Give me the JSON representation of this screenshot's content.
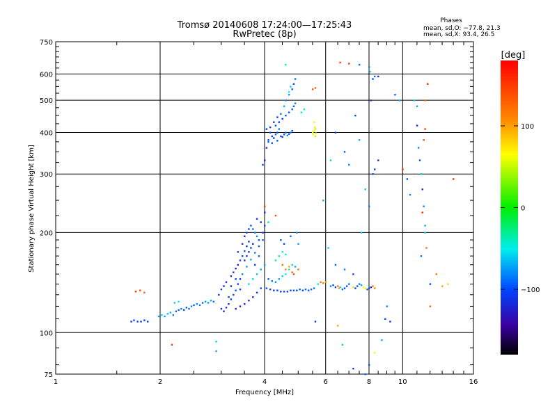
{
  "chart_data": {
    "type": "scatter",
    "title": "Tromsø 20140608 17:24:00—17:25:43",
    "subtitle": "RwPretec (8p)",
    "xlabel": "Frequency [MHz]",
    "ylabel": "Stationary phase Virtual Height [km]",
    "x_scale": "log",
    "y_scale": "log",
    "xlim": [
      1,
      16
    ],
    "ylim": [
      75,
      750
    ],
    "x_ticks": [
      {
        "value": 1,
        "label": "1"
      },
      {
        "value": 2,
        "label": "2"
      },
      {
        "value": 4,
        "label": "4"
      },
      {
        "value": 6,
        "label": "6"
      },
      {
        "value": 8,
        "label": "8"
      },
      {
        "value": 10,
        "label": "10"
      },
      {
        "value": 16,
        "label": "16"
      }
    ],
    "y_ticks": [
      {
        "value": 75,
        "label": "75"
      },
      {
        "value": 100,
        "label": "100"
      },
      {
        "value": 200,
        "label": "200"
      },
      {
        "value": 300,
        "label": "300"
      },
      {
        "value": 400,
        "label": "400"
      },
      {
        "value": 500,
        "label": "500"
      },
      {
        "value": 600,
        "label": "600"
      },
      {
        "value": 750,
        "label": "750"
      }
    ],
    "grid": true,
    "phases_box": {
      "heading": "Phases",
      "line1": "mean, sd,O: −77.8, 21.3",
      "line2": "mean, sd,X:  93.4, 26.5"
    },
    "colorbar": {
      "label": "[deg]",
      "min": -180,
      "max": 180,
      "ticks": [
        {
          "value": 100,
          "label": "100"
        },
        {
          "value": 0,
          "label": "0"
        },
        {
          "value": -100,
          "label": "−100"
        }
      ]
    },
    "points": [
      [
        1.65,
        108,
        -110
      ],
      [
        1.68,
        109,
        -105
      ],
      [
        1.72,
        108,
        -100
      ],
      [
        1.76,
        108,
        -112
      ],
      [
        1.8,
        109,
        -108
      ],
      [
        1.84,
        108,
        -104
      ],
      [
        1.7,
        133,
        150
      ],
      [
        1.75,
        134,
        140
      ],
      [
        1.8,
        132,
        130
      ],
      [
        1.98,
        112,
        -70
      ],
      [
        2.02,
        113,
        -60
      ],
      [
        2.06,
        112,
        -75
      ],
      [
        2.1,
        114,
        -65
      ],
      [
        2.14,
        115,
        -70
      ],
      [
        2.18,
        113,
        -80
      ],
      [
        2.22,
        116,
        -90
      ],
      [
        2.26,
        117,
        -95
      ],
      [
        2.3,
        118,
        -85
      ],
      [
        2.34,
        117,
        -100
      ],
      [
        2.38,
        119,
        -92
      ],
      [
        2.42,
        118,
        -88
      ],
      [
        2.46,
        120,
        -82
      ],
      [
        2.5,
        121,
        -95
      ],
      [
        2.55,
        122,
        -78
      ],
      [
        2.6,
        121,
        -85
      ],
      [
        2.65,
        123,
        -90
      ],
      [
        2.7,
        124,
        -75
      ],
      [
        2.75,
        123,
        -80
      ],
      [
        2.8,
        125,
        -70
      ],
      [
        2.85,
        124,
        -88
      ],
      [
        2.2,
        123,
        -60
      ],
      [
        2.26,
        124,
        -50
      ],
      [
        2.16,
        92,
        150
      ],
      [
        2.9,
        94,
        -60
      ],
      [
        2.9,
        88,
        -70
      ],
      [
        2.95,
        130,
        -110
      ],
      [
        3.0,
        135,
        -105
      ],
      [
        3.05,
        138,
        -115
      ],
      [
        3.1,
        142,
        -120
      ],
      [
        3.0,
        118,
        -120
      ],
      [
        3.05,
        116,
        -125
      ],
      [
        3.1,
        119,
        -118
      ],
      [
        3.15,
        122,
        -112
      ],
      [
        3.2,
        126,
        -108
      ],
      [
        3.25,
        130,
        -100
      ],
      [
        3.3,
        134,
        -95
      ],
      [
        3.35,
        140,
        -105
      ],
      [
        3.4,
        145,
        -110
      ],
      [
        3.2,
        148,
        -120
      ],
      [
        3.25,
        152,
        -115
      ],
      [
        3.3,
        156,
        -125
      ],
      [
        3.35,
        160,
        -118
      ],
      [
        3.4,
        165,
        -112
      ],
      [
        3.45,
        170,
        -105
      ],
      [
        3.5,
        176,
        -100
      ],
      [
        3.55,
        182,
        -110
      ],
      [
        3.6,
        188,
        -115
      ],
      [
        3.5,
        195,
        -120
      ],
      [
        3.55,
        200,
        -108
      ],
      [
        3.6,
        205,
        -100
      ],
      [
        3.65,
        210,
        -96
      ],
      [
        3.7,
        205,
        -90
      ],
      [
        3.75,
        200,
        -85
      ],
      [
        3.8,
        195,
        -80
      ],
      [
        3.85,
        190,
        -95
      ],
      [
        3.3,
        118,
        -130
      ],
      [
        3.4,
        120,
        -128
      ],
      [
        3.5,
        122,
        -122
      ],
      [
        3.6,
        125,
        -118
      ],
      [
        3.7,
        128,
        -112
      ],
      [
        3.8,
        132,
        -108
      ],
      [
        3.9,
        136,
        -100
      ],
      [
        3.45,
        150,
        -80
      ],
      [
        3.55,
        158,
        -75
      ],
      [
        3.65,
        166,
        -70
      ],
      [
        3.75,
        174,
        -85
      ],
      [
        3.85,
        182,
        -90
      ],
      [
        3.95,
        190,
        -95
      ],
      [
        3.6,
        140,
        -60
      ],
      [
        3.7,
        145,
        -55
      ],
      [
        3.8,
        150,
        -65
      ],
      [
        3.9,
        155,
        -70
      ],
      [
        4.0,
        160,
        -75
      ],
      [
        3.35,
        175,
        -110
      ],
      [
        3.45,
        185,
        -115
      ],
      [
        3.55,
        170,
        -120
      ],
      [
        3.65,
        180,
        -105
      ],
      [
        3.75,
        160,
        -100
      ],
      [
        3.85,
        170,
        -95
      ],
      [
        3.95,
        200,
        -110
      ],
      [
        4.0,
        210,
        -100
      ],
      [
        3.9,
        215,
        -120
      ],
      [
        3.8,
        220,
        -105
      ],
      [
        3.7,
        185,
        -115
      ],
      [
        3.6,
        175,
        -110
      ],
      [
        3.5,
        165,
        -118
      ],
      [
        3.4,
        135,
        -112
      ],
      [
        3.3,
        145,
        -106
      ],
      [
        3.2,
        138,
        -114
      ],
      [
        3.15,
        128,
        -108
      ],
      [
        3.95,
        320,
        -110
      ],
      [
        4.0,
        330,
        -120
      ],
      [
        4.05,
        360,
        -115
      ],
      [
        4.1,
        380,
        -100
      ],
      [
        4.15,
        400,
        -95
      ],
      [
        4.2,
        390,
        -105
      ],
      [
        4.25,
        385,
        -110
      ],
      [
        4.3,
        395,
        -90
      ],
      [
        4.35,
        400,
        -100
      ],
      [
        4.4,
        410,
        -85
      ],
      [
        4.45,
        390,
        -95
      ],
      [
        4.5,
        388,
        -105
      ],
      [
        4.55,
        395,
        -100
      ],
      [
        4.6,
        400,
        -90
      ],
      [
        4.65,
        392,
        -80
      ],
      [
        4.7,
        396,
        -95
      ],
      [
        4.75,
        400,
        -85
      ],
      [
        4.8,
        405,
        -100
      ],
      [
        4.3,
        420,
        -95
      ],
      [
        4.4,
        430,
        -105
      ],
      [
        4.5,
        440,
        -110
      ],
      [
        4.6,
        450,
        -95
      ],
      [
        4.7,
        460,
        -100
      ],
      [
        4.8,
        470,
        -90
      ],
      [
        4.85,
        480,
        -95
      ],
      [
        4.9,
        490,
        -85
      ],
      [
        4.6,
        500,
        -80
      ],
      [
        4.7,
        520,
        -75
      ],
      [
        4.8,
        540,
        -95
      ],
      [
        4.85,
        560,
        -100
      ],
      [
        4.9,
        580,
        -90
      ],
      [
        4.75,
        550,
        -60
      ],
      [
        4.7,
        530,
        -50
      ],
      [
        4.55,
        480,
        -70
      ],
      [
        4.45,
        455,
        -85
      ],
      [
        4.35,
        445,
        -110
      ],
      [
        4.25,
        430,
        -115
      ],
      [
        4.15,
        415,
        -110
      ],
      [
        4.05,
        410,
        -100
      ],
      [
        4.1,
        375,
        -90
      ],
      [
        4.2,
        372,
        -95
      ],
      [
        4.35,
        378,
        -98
      ],
      [
        4.6,
        640,
        -40
      ],
      [
        5.1,
        460,
        -40
      ],
      [
        5.2,
        470,
        -45
      ],
      [
        5.5,
        400,
        60
      ],
      [
        5.55,
        405,
        55
      ],
      [
        5.6,
        410,
        50
      ],
      [
        5.52,
        395,
        65
      ],
      [
        5.58,
        415,
        58
      ],
      [
        5.62,
        398,
        62
      ],
      [
        5.55,
        430,
        70
      ],
      [
        5.6,
        390,
        45
      ],
      [
        5.5,
        540,
        140
      ],
      [
        5.6,
        545,
        130
      ],
      [
        4.05,
        136,
        -100
      ],
      [
        4.15,
        135,
        -105
      ],
      [
        4.25,
        134,
        -110
      ],
      [
        4.35,
        134,
        -108
      ],
      [
        4.45,
        133,
        -112
      ],
      [
        4.55,
        133,
        -106
      ],
      [
        4.65,
        133,
        -104
      ],
      [
        4.75,
        134,
        -100
      ],
      [
        4.85,
        134,
        -95
      ],
      [
        4.95,
        134,
        -98
      ],
      [
        5.05,
        135,
        -96
      ],
      [
        5.15,
        134,
        -100
      ],
      [
        5.25,
        135,
        -92
      ],
      [
        5.35,
        134,
        -95
      ],
      [
        5.45,
        135,
        -90
      ],
      [
        5.55,
        136,
        -85
      ],
      [
        4.1,
        145,
        -90
      ],
      [
        4.2,
        143,
        -85
      ],
      [
        4.3,
        142,
        -80
      ],
      [
        4.4,
        145,
        -70
      ],
      [
        4.5,
        148,
        -60
      ],
      [
        4.6,
        150,
        -50
      ],
      [
        4.7,
        155,
        -40
      ],
      [
        4.8,
        160,
        -60
      ],
      [
        4.9,
        158,
        -70
      ],
      [
        4.5,
        160,
        120
      ],
      [
        4.6,
        155,
        110
      ],
      [
        4.7,
        158,
        100
      ],
      [
        4.8,
        152,
        130
      ],
      [
        4.85,
        150,
        140
      ],
      [
        5.0,
        155,
        115
      ],
      [
        4.4,
        170,
        -30
      ],
      [
        4.5,
        175,
        -40
      ],
      [
        4.6,
        172,
        -50
      ],
      [
        4.3,
        165,
        -35
      ],
      [
        4.45,
        190,
        -95
      ],
      [
        4.55,
        185,
        -100
      ],
      [
        4.75,
        195,
        -90
      ],
      [
        4.95,
        200,
        -80
      ],
      [
        5.0,
        185,
        -70
      ],
      [
        4.0,
        240,
        150
      ],
      [
        4.3,
        225,
        140
      ],
      [
        4.1,
        215,
        -60
      ],
      [
        4.0,
        230,
        -120
      ],
      [
        5.6,
        108,
        -110
      ],
      [
        5.8,
        142,
        120
      ],
      [
        5.9,
        141,
        110
      ],
      [
        6.0,
        142,
        100
      ],
      [
        5.7,
        140,
        -40
      ],
      [
        6.2,
        138,
        -80
      ],
      [
        6.3,
        139,
        -100
      ],
      [
        6.4,
        137,
        -110
      ],
      [
        6.5,
        138,
        120
      ],
      [
        6.55,
        136,
        100
      ],
      [
        6.6,
        137,
        -60
      ],
      [
        6.7,
        135,
        -90
      ],
      [
        6.8,
        136,
        -100
      ],
      [
        6.9,
        138,
        -95
      ],
      [
        7.0,
        140,
        -90
      ],
      [
        7.2,
        137,
        80
      ],
      [
        7.3,
        136,
        -100
      ],
      [
        7.4,
        138,
        -95
      ],
      [
        7.5,
        140,
        -85
      ],
      [
        7.6,
        139,
        -70
      ],
      [
        7.7,
        137,
        60
      ],
      [
        7.8,
        136,
        70
      ],
      [
        7.9,
        135,
        -95
      ],
      [
        8.0,
        136,
        -100
      ],
      [
        8.1,
        137,
        -105
      ],
      [
        8.2,
        138,
        120
      ],
      [
        8.3,
        136,
        110
      ],
      [
        6.6,
        650,
        150
      ],
      [
        7.0,
        645,
        150
      ],
      [
        7.5,
        640,
        -90
      ],
      [
        8.0,
        630,
        -80
      ],
      [
        8.05,
        610,
        -60
      ],
      [
        8.1,
        500,
        -110
      ],
      [
        8.2,
        580,
        -100
      ],
      [
        8.3,
        590,
        -90
      ],
      [
        8.5,
        590,
        -120
      ],
      [
        5.9,
        250,
        -70
      ],
      [
        6.2,
        330,
        -60
      ],
      [
        6.4,
        400,
        -110
      ],
      [
        6.8,
        350,
        -95
      ],
      [
        7.0,
        320,
        -80
      ],
      [
        7.3,
        450,
        -100
      ],
      [
        7.5,
        380,
        -70
      ],
      [
        7.8,
        270,
        -60
      ],
      [
        8.0,
        240,
        -85
      ],
      [
        8.2,
        300,
        -100
      ],
      [
        8.3,
        310,
        -110
      ],
      [
        8.5,
        330,
        -120
      ],
      [
        6.1,
        180,
        -60
      ],
      [
        6.4,
        160,
        -90
      ],
      [
        6.8,
        155,
        -80
      ],
      [
        7.2,
        150,
        -100
      ],
      [
        7.6,
        200,
        -60
      ],
      [
        6.5,
        105,
        100
      ],
      [
        6.7,
        92,
        -60
      ],
      [
        7.2,
        78,
        -110
      ],
      [
        7.8,
        75,
        -90
      ],
      [
        8.0,
        80,
        -95
      ],
      [
        8.3,
        87,
        60
      ],
      [
        8.7,
        95,
        -70
      ],
      [
        9.2,
        108,
        -110
      ],
      [
        8.9,
        110,
        -100
      ],
      [
        9.0,
        120,
        -80
      ],
      [
        9.5,
        520,
        -90
      ],
      [
        9.8,
        500,
        -70
      ],
      [
        10.0,
        310,
        160
      ],
      [
        10.3,
        290,
        -100
      ],
      [
        10.5,
        260,
        -80
      ],
      [
        10.8,
        500,
        -60
      ],
      [
        11.0,
        480,
        -70
      ],
      [
        11.0,
        420,
        -110
      ],
      [
        11.1,
        360,
        -80
      ],
      [
        11.2,
        330,
        -100
      ],
      [
        11.3,
        300,
        -60
      ],
      [
        11.4,
        270,
        -120
      ],
      [
        11.5,
        240,
        -80
      ],
      [
        11.6,
        210,
        -70
      ],
      [
        11.7,
        180,
        120
      ],
      [
        11.4,
        230,
        160
      ],
      [
        11.6,
        200,
        -60
      ],
      [
        12.0,
        140,
        -100
      ],
      [
        12.5,
        150,
        120
      ],
      [
        13.0,
        138,
        100
      ],
      [
        11.8,
        560,
        160
      ],
      [
        11.6,
        500,
        130
      ],
      [
        11.6,
        410,
        150
      ],
      [
        11.5,
        380,
        140
      ],
      [
        11.3,
        170,
        -90
      ],
      [
        12.0,
        120,
        130
      ],
      [
        13.5,
        140,
        80
      ],
      [
        14.0,
        290,
        160
      ]
    ]
  }
}
